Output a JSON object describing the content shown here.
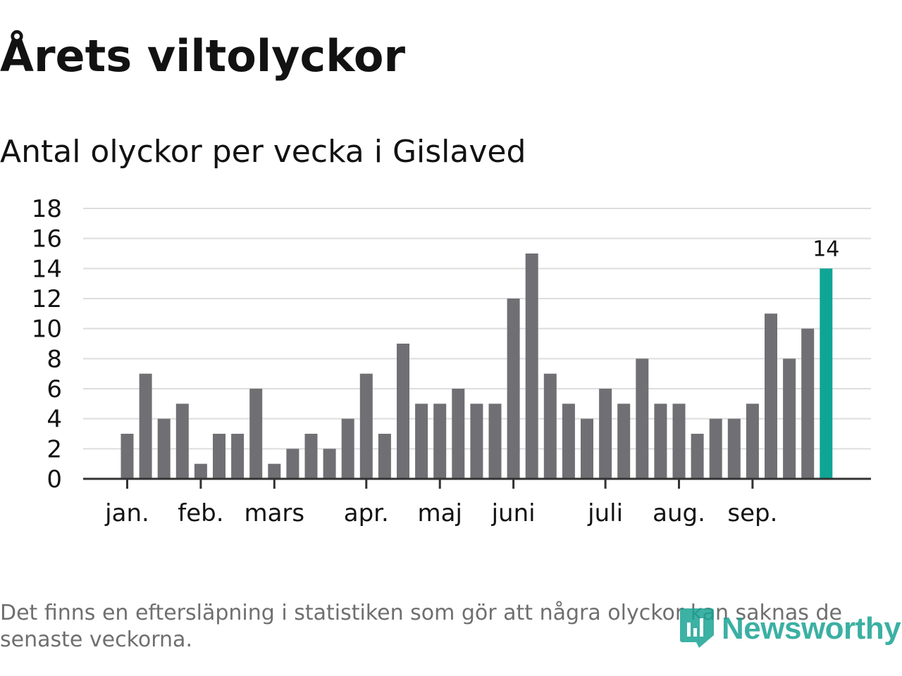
{
  "title": "Årets viltolyckor",
  "subtitle": "Antal olyckor per vecka i Gislaved",
  "footnote": "Det finns en eftersläpning i statistiken som gör att några olyckor kan saknas de senaste veckorna.",
  "logo": {
    "text": "Newsworthy",
    "icon": "newsworthy-logo-icon"
  },
  "colors": {
    "bar": "#706f74",
    "highlight": "#0fa595",
    "grid": "#dddddd",
    "axis": "#333333",
    "text": "#121212"
  },
  "chart_data": {
    "type": "bar",
    "title": "Antal olyckor per vecka i Gislaved",
    "xlabel": "",
    "ylabel": "",
    "ylim": [
      0,
      18
    ],
    "yticks": [
      0,
      2,
      4,
      6,
      8,
      10,
      12,
      14,
      16,
      18
    ],
    "grid": true,
    "month_labels": [
      {
        "label": "jan.",
        "week": 1
      },
      {
        "label": "feb.",
        "week": 5
      },
      {
        "label": "mars",
        "week": 9
      },
      {
        "label": "apr.",
        "week": 14
      },
      {
        "label": "maj",
        "week": 18
      },
      {
        "label": "juni",
        "week": 22
      },
      {
        "label": "juli",
        "week": 27
      },
      {
        "label": "aug.",
        "week": 31
      },
      {
        "label": "sep.",
        "week": 35
      }
    ],
    "weeks": [
      1,
      2,
      3,
      4,
      5,
      6,
      7,
      8,
      9,
      10,
      11,
      12,
      13,
      14,
      15,
      16,
      17,
      18,
      19,
      20,
      21,
      22,
      23,
      24,
      25,
      26,
      27,
      28,
      29,
      30,
      31,
      32,
      33,
      34,
      35,
      36,
      37,
      38,
      39
    ],
    "values": [
      3,
      7,
      4,
      5,
      1,
      3,
      3,
      6,
      1,
      2,
      3,
      2,
      4,
      7,
      3,
      9,
      5,
      5,
      6,
      5,
      5,
      12,
      15,
      7,
      5,
      4,
      6,
      5,
      8,
      5,
      5,
      3,
      4,
      4,
      5,
      11,
      8,
      10,
      14
    ],
    "highlight_index": 38,
    "highlight_label": "14"
  }
}
